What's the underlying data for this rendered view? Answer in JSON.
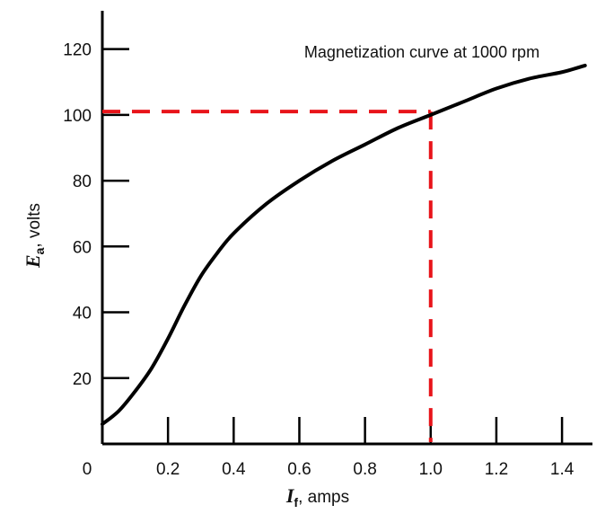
{
  "chart_data": {
    "type": "line",
    "title": "",
    "annotation": "Magnetization curve at 1000 rpm",
    "xlabel": {
      "symbol": "I",
      "subscript": "f",
      "suffix": ", amps"
    },
    "ylabel": {
      "symbol": "E",
      "subscript": "a",
      "suffix": ", volts"
    },
    "xlim": [
      0,
      1.6
    ],
    "ylim": [
      0,
      130
    ],
    "x_ticks": [
      "0.2",
      "0.4",
      "0.6",
      "0.8",
      "1.0",
      "1.2",
      "1.4"
    ],
    "x_origin_label": "0",
    "y_ticks": [
      "20",
      "40",
      "60",
      "80",
      "100",
      "120"
    ],
    "grid": false,
    "series": [
      {
        "color": "#000000",
        "x": [
          0.0,
          0.05,
          0.1,
          0.15,
          0.2,
          0.25,
          0.3,
          0.35,
          0.4,
          0.5,
          0.6,
          0.7,
          0.8,
          0.9,
          1.0,
          1.1,
          1.2,
          1.3,
          1.4,
          1.47
        ],
        "y": [
          6,
          10,
          16,
          23,
          32,
          42,
          51,
          58,
          64,
          73,
          80,
          86,
          91,
          96,
          100,
          104,
          108,
          111,
          113,
          115
        ]
      }
    ],
    "reference_lines": {
      "color": "#e8141a",
      "x": 1.0,
      "y": 101
    }
  }
}
